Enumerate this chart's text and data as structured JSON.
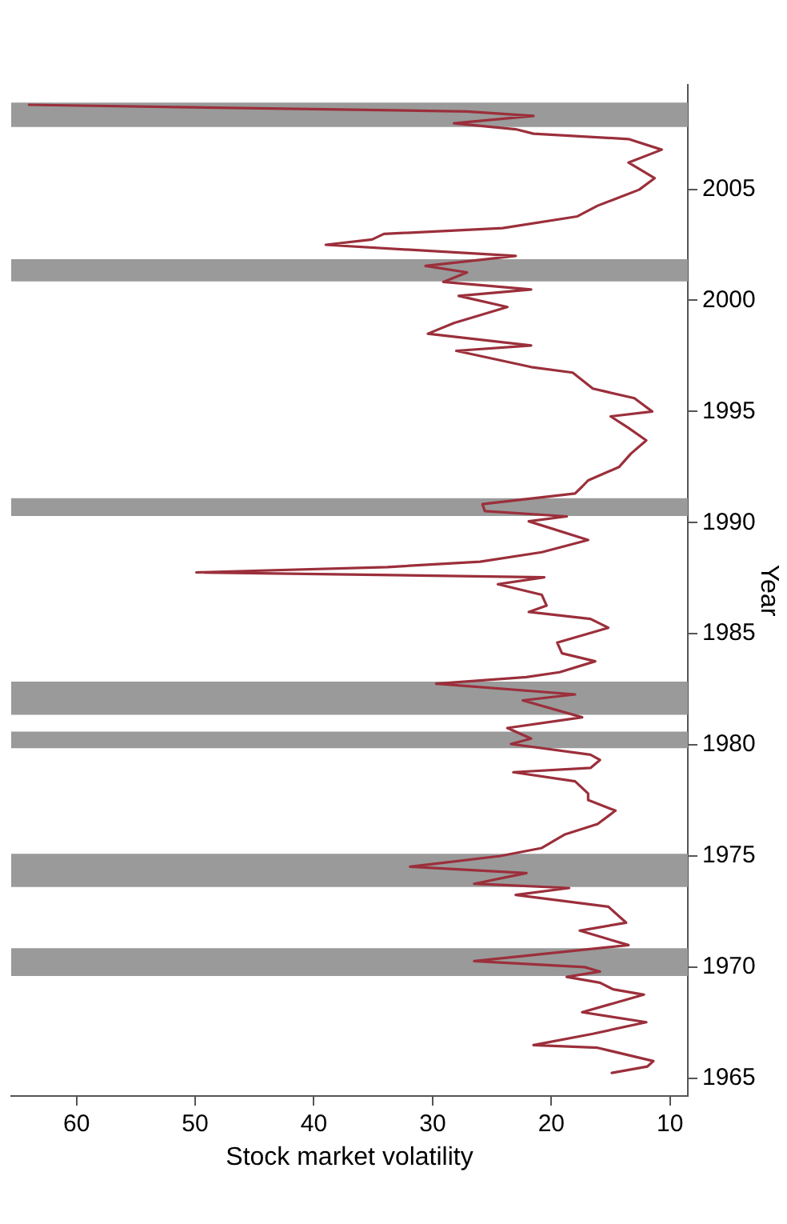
{
  "chart_data": {
    "type": "line",
    "orientation": "horizontal",
    "xlabel": "Stock market volatility",
    "ylabel": "Year",
    "xlim": [
      65.5,
      8.5
    ],
    "xticks": [
      10,
      20,
      30,
      40,
      50,
      60
    ],
    "ylim": [
      1964.2,
      2009.7
    ],
    "yticks": [
      1965,
      1970,
      1975,
      1980,
      1985,
      1990,
      1995,
      2000,
      2005
    ],
    "grid": false,
    "legend": false,
    "marker": "none",
    "line_style": "solid",
    "bands": [
      {
        "axis": "y",
        "from": 1969.6,
        "to": 1970.85,
        "color": "#9a9a9a"
      },
      {
        "axis": "y",
        "from": 1973.6,
        "to": 1975.1,
        "color": "#9a9a9a"
      },
      {
        "axis": "y",
        "from": 1979.85,
        "to": 1980.6,
        "color": "#9a9a9a"
      },
      {
        "axis": "y",
        "from": 1981.35,
        "to": 1982.85,
        "color": "#9a9a9a"
      },
      {
        "axis": "y",
        "from": 1990.3,
        "to": 1991.1,
        "color": "#9a9a9a"
      },
      {
        "axis": "y",
        "from": 2000.85,
        "to": 2001.85,
        "color": "#9a9a9a"
      },
      {
        "axis": "y",
        "from": 2007.8,
        "to": 2008.9,
        "color": "#9a9a9a"
      }
    ],
    "series": [
      {
        "color": "#9b2f3b",
        "x": [
          1965.24,
          1965.53,
          1965.77,
          1966.37,
          1966.49,
          1967.0,
          1967.52,
          1967.97,
          1968.76,
          1969.0,
          1969.3,
          1969.56,
          1969.8,
          1970.0,
          1970.27,
          1970.99,
          1971.64,
          1972.0,
          1972.72,
          1973.25,
          1973.56,
          1973.75,
          1974.23,
          1974.52,
          1975.0,
          1975.36,
          1975.96,
          1976.44,
          1977.04,
          1977.52,
          1977.81,
          1978.36,
          1978.77,
          1978.96,
          1979.32,
          1979.56,
          1980.04,
          1980.28,
          1980.76,
          1981.24,
          1982.0,
          1982.27,
          1982.75,
          1983.05,
          1983.27,
          1983.76,
          1984.12,
          1984.6,
          1985.27,
          1985.67,
          1985.98,
          1986.27,
          1986.75,
          1987.23,
          1987.54,
          1987.76,
          1988.0,
          1988.24,
          1988.67,
          1989.22,
          1990.06,
          1990.28,
          1990.52,
          1990.83,
          1991.31,
          1991.62,
          1991.9,
          1992.5,
          1993.1,
          1993.7,
          1994.26,
          1994.78,
          1995.0,
          1995.6,
          1996.03,
          1996.75,
          1997.0,
          1997.73,
          1997.97,
          1998.5,
          1998.98,
          1999.7,
          2000.2,
          2000.49,
          2000.83,
          2001.26,
          2001.55,
          2002.0,
          2002.5,
          2002.74,
          2002.99,
          2003.25,
          2003.78,
          2004.26,
          2004.98,
          2005.5,
          2006.2,
          2006.78,
          2007.26,
          2007.5,
          2007.7,
          2007.97,
          2008.3,
          2008.5,
          2008.8
        ],
        "values": [
          14.9,
          11.9,
          11.4,
          16.1,
          21.5,
          16.5,
          12.0,
          17.4,
          12.2,
          14.8,
          15.9,
          18.7,
          15.9,
          17.2,
          26.5,
          13.5,
          17.6,
          13.7,
          15.2,
          23.0,
          18.5,
          26.5,
          22.1,
          31.9,
          24.3,
          20.8,
          18.9,
          16.1,
          14.6,
          16.9,
          16.9,
          18.0,
          23.2,
          16.7,
          15.9,
          16.7,
          23.4,
          21.7,
          23.7,
          17.4,
          22.4,
          18.0,
          29.7,
          22.1,
          19.3,
          16.3,
          19.1,
          19.5,
          15.2,
          16.7,
          21.9,
          20.4,
          20.8,
          24.5,
          20.6,
          49.9,
          33.8,
          26.0,
          20.8,
          16.9,
          21.9,
          18.7,
          25.6,
          25.8,
          18.0,
          17.4,
          16.9,
          14.3,
          13.3,
          12.0,
          13.5,
          15.0,
          11.5,
          13.0,
          16.5,
          18.2,
          21.7,
          28.0,
          21.7,
          30.4,
          28.2,
          23.7,
          27.8,
          21.7,
          29.1,
          27.1,
          30.6,
          23.0,
          39.0,
          35.1,
          34.1,
          24.1,
          17.8,
          16.1,
          12.6,
          11.3,
          13.5,
          10.7,
          13.5,
          21.5,
          23.0,
          28.2,
          21.5,
          27.1,
          64.0
        ]
      }
    ]
  }
}
